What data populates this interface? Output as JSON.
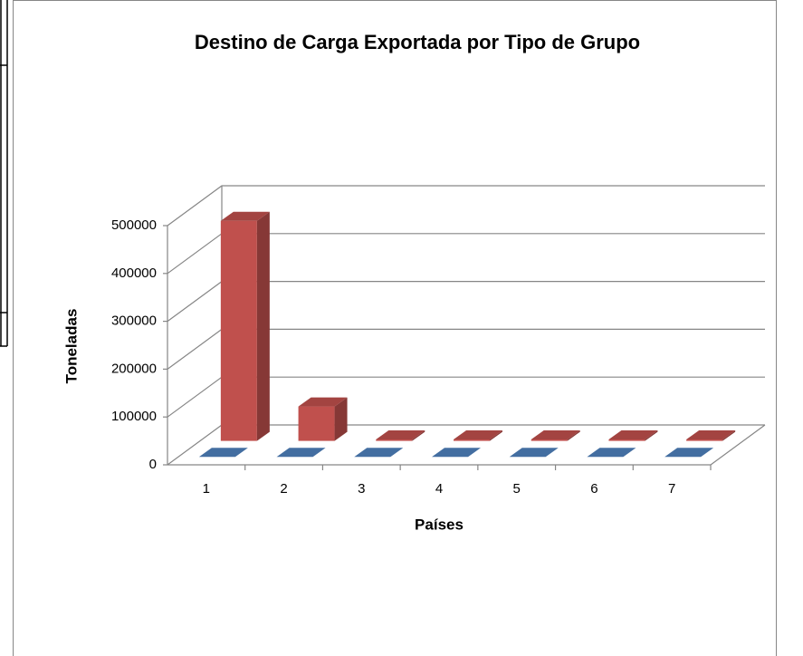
{
  "chart_data": {
    "type": "bar3d",
    "title": "Destino de Carga Exportada por Tipo de Grupo",
    "x_label": "Países",
    "y_label": "Toneladas",
    "categories": [
      "1",
      "2",
      "3",
      "4",
      "5",
      "6",
      "7"
    ],
    "series": [
      {
        "color": "#4f81bd",
        "values": [
          0,
          0,
          0,
          0,
          0,
          0,
          0
        ]
      },
      {
        "color": "#c0504d",
        "values": [
          460000,
          72000,
          3000,
          3000,
          3000,
          3000,
          3000
        ]
      }
    ],
    "ylim": [
      0,
      500000
    ],
    "yticks": [
      0,
      100000,
      200000,
      300000,
      400000,
      500000
    ],
    "grid": true
  }
}
